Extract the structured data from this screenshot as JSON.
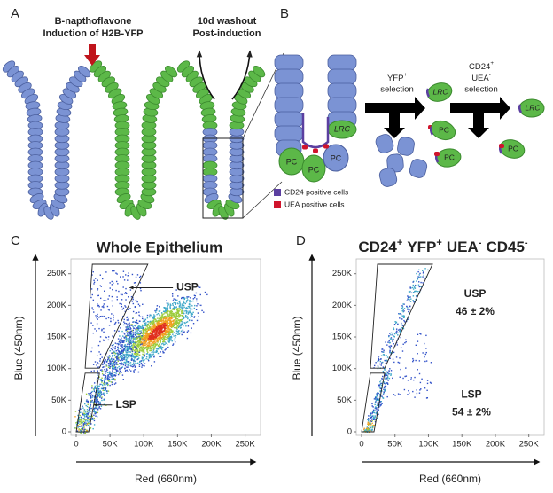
{
  "figure": {
    "panel_a": {
      "label": "A",
      "induction": [
        "B-napthoflavone",
        "Induction of H2B-YFP"
      ],
      "washout": [
        "10d washout",
        "Post-induction"
      ]
    },
    "panel_b": {
      "label": "B",
      "cells": {
        "lrc": "LRC",
        "pc": "PC"
      },
      "steps": [
        {
          "markers": [
            {
              "name": "YFP",
              "sign": "+"
            }
          ],
          "text": "selection"
        },
        {
          "markers": [
            {
              "name": "CD24",
              "sign": "+"
            },
            {
              "name": "UEA",
              "sign": "-"
            }
          ],
          "text": "selection"
        }
      ],
      "legend": [
        {
          "name": "CD24 positive cells",
          "color": "#5b3fa0"
        },
        {
          "name": "UEA positive cells",
          "color": "#d0142c"
        }
      ]
    }
  },
  "chart_data": [
    {
      "type": "scatter",
      "label": "C",
      "title": "Whole Epithelium",
      "xlabel": "Red (660nm)",
      "ylabel": "Blue (450nm)",
      "xlim": [
        0,
        265000
      ],
      "ylim": [
        0,
        265000
      ],
      "xticks": [
        0,
        {
          "value": 50000,
          "label": "50K"
        },
        {
          "value": 100000,
          "label": "100K"
        },
        {
          "value": 150000,
          "label": "150K"
        },
        {
          "value": 200000,
          "label": "200K"
        },
        {
          "value": 250000,
          "label": "250K"
        }
      ],
      "yticks": [
        0,
        {
          "value": 50000,
          "label": "50K"
        },
        {
          "value": 100000,
          "label": "100K"
        },
        {
          "value": 150000,
          "label": "150K"
        },
        {
          "value": 200000,
          "label": "200K"
        },
        {
          "value": 250000,
          "label": "250K"
        }
      ],
      "gates": [
        {
          "name": "USP"
        },
        {
          "name": "LSP"
        }
      ]
    },
    {
      "type": "scatter",
      "label": "D",
      "title": [
        {
          "text": "CD24",
          "sup": "+"
        },
        {
          "text": "YFP",
          "sup": "+"
        },
        {
          "text": "UEA",
          "sup": "-"
        },
        {
          "text": "CD45",
          "sup": "-"
        }
      ],
      "xlabel": "Red (660nm)",
      "ylabel": "Blue (450nm)",
      "xlim": [
        0,
        265000
      ],
      "ylim": [
        0,
        265000
      ],
      "xticks": [
        0,
        {
          "value": 50000,
          "label": "50K"
        },
        {
          "value": 100000,
          "label": "100K"
        },
        {
          "value": 150000,
          "label": "150K"
        },
        {
          "value": 200000,
          "label": "200K"
        },
        {
          "value": 250000,
          "label": "250K"
        }
      ],
      "yticks": [
        0,
        {
          "value": 50000,
          "label": "50K"
        },
        {
          "value": 100000,
          "label": "100K"
        },
        {
          "value": 150000,
          "label": "150K"
        },
        {
          "value": 200000,
          "label": "200K"
        },
        {
          "value": 250000,
          "label": "250K"
        }
      ],
      "gates": [
        {
          "name": "USP",
          "value": 46,
          "error": 2,
          "label": "46 ± 2%"
        },
        {
          "name": "LSP",
          "value": 54,
          "error": 2,
          "label": "54 ± 2%"
        }
      ]
    }
  ]
}
